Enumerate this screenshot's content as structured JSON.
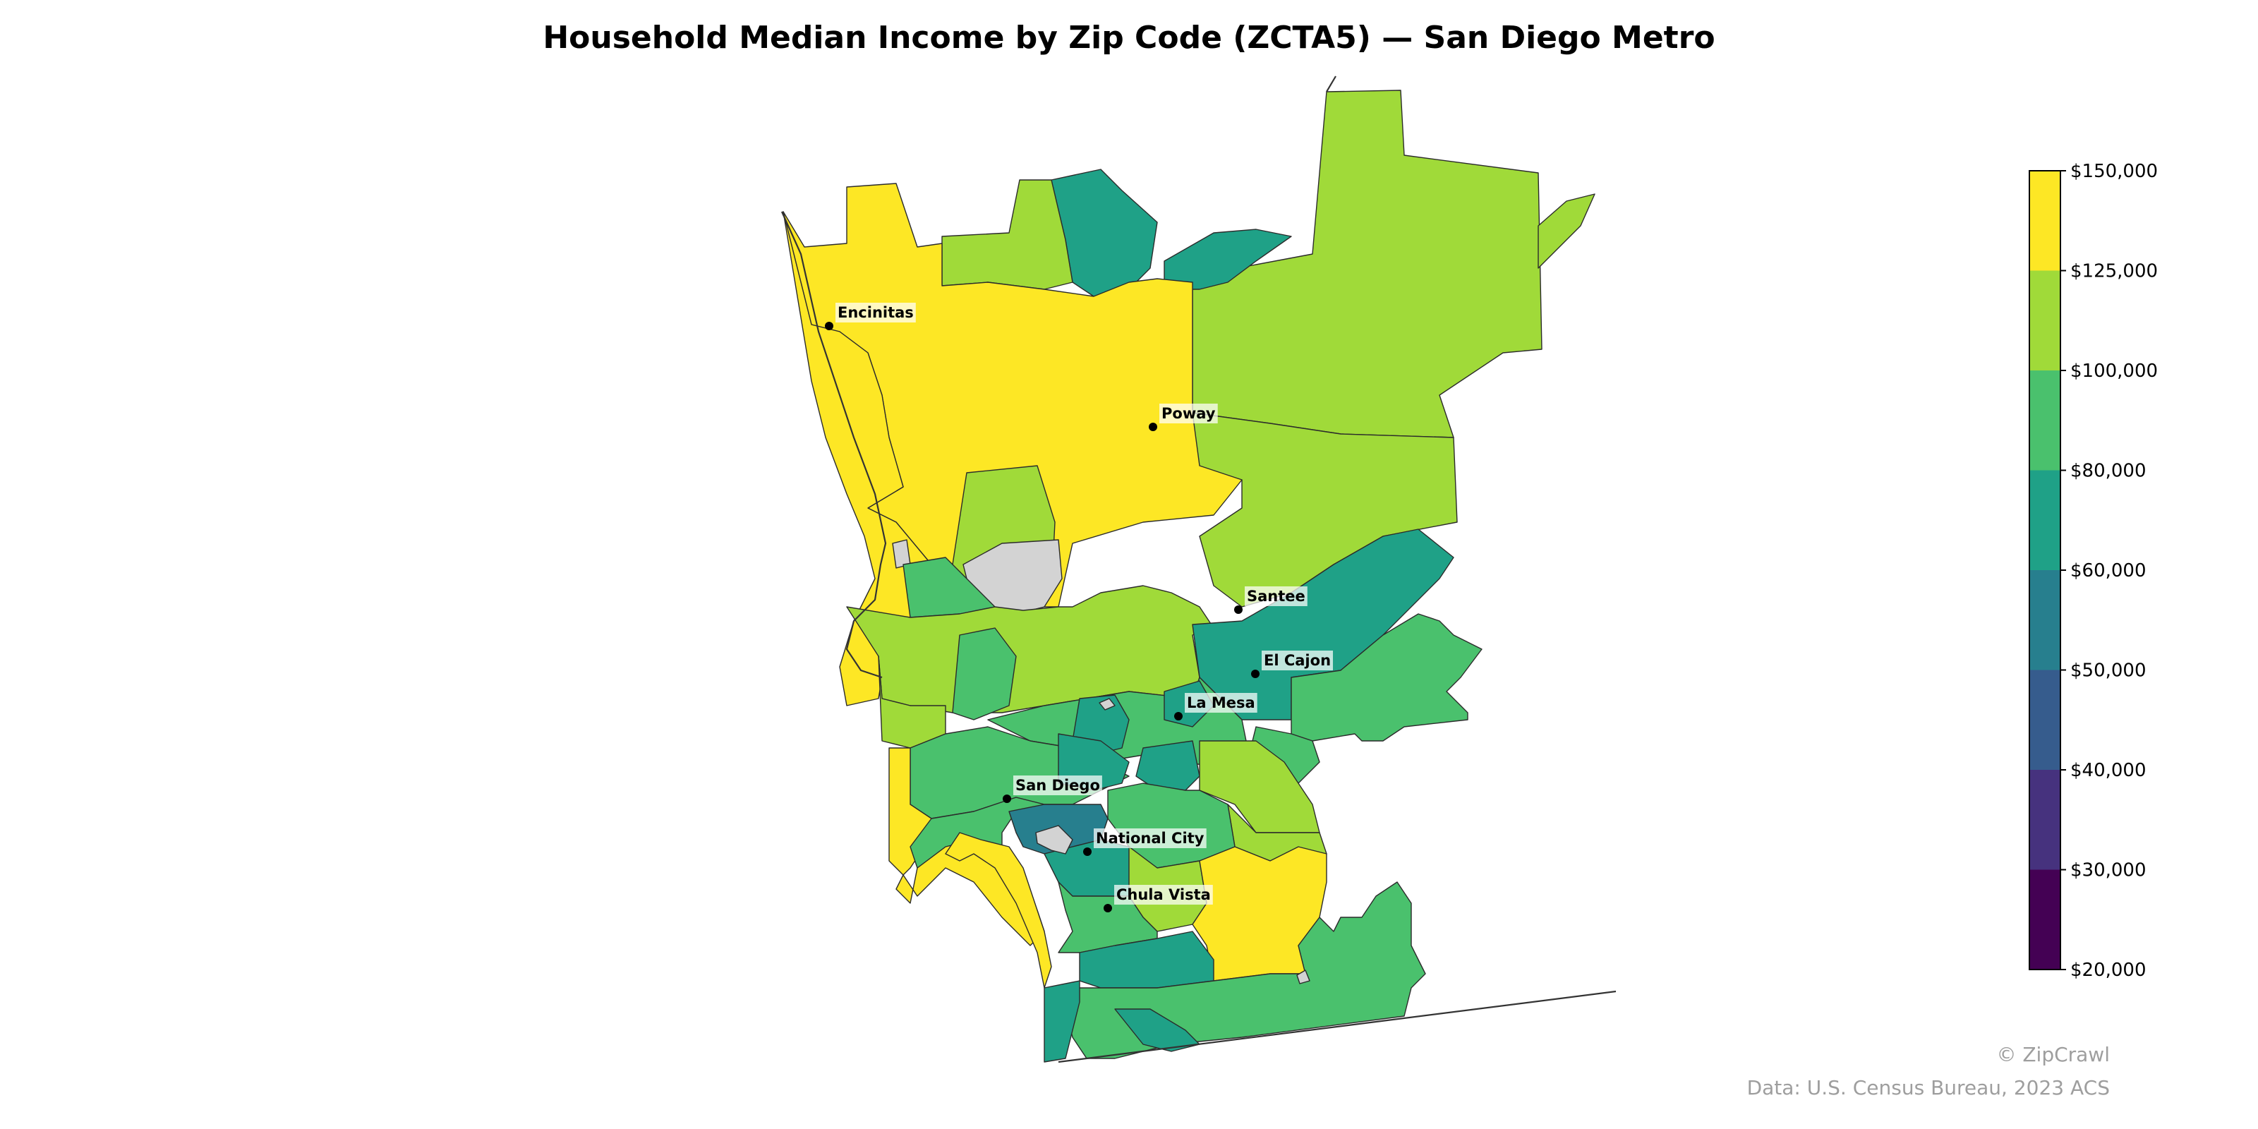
{
  "title": "Household Median Income by Zip Code (ZCTA5) — San Diego Metro",
  "legend": {
    "ticks": [
      "$150,000",
      "$125,000",
      "$100,000",
      "$80,000",
      "$60,000",
      "$50,000",
      "$40,000",
      "$30,000",
      "$20,000"
    ],
    "colors": [
      "#fde725",
      "#a0da39",
      "#4ac16d",
      "#1fa187",
      "#277f8e",
      "#365c8d",
      "#46327e",
      "#440154"
    ]
  },
  "palette": {
    "yellow": "#fde725",
    "lime": "#a0da39",
    "green": "#4ac16d",
    "teal": "#1fa187",
    "blue": "#277f8e",
    "nodata": "#d3d3d3"
  },
  "cities": [
    {
      "name": "Encinitas"
    },
    {
      "name": "Poway"
    },
    {
      "name": "Santee"
    },
    {
      "name": "El Cajon"
    },
    {
      "name": "La Mesa"
    },
    {
      "name": "San Diego"
    },
    {
      "name": "National City"
    },
    {
      "name": "Chula Vista"
    }
  ],
  "credit": "© ZipCrawl",
  "source": "Data: U.S. Census Bureau, 2023 ACS"
}
